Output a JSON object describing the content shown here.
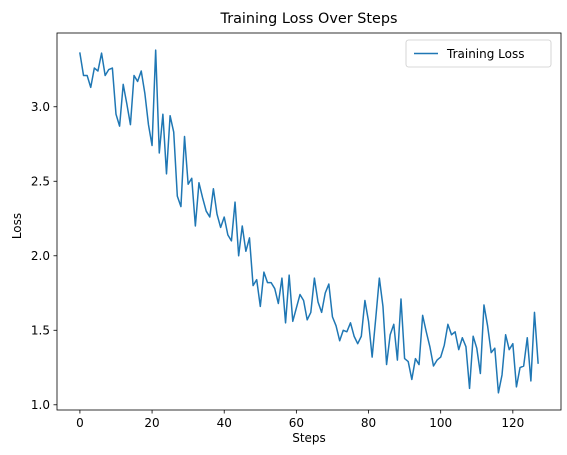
{
  "chart_data": {
    "type": "line",
    "title": "Training Loss Over Steps",
    "xlabel": "Steps",
    "ylabel": "Loss",
    "xlim": [
      -6.35,
      133.35
    ],
    "ylim": [
      0.965,
      3.495
    ],
    "xticks": [
      0,
      20,
      40,
      60,
      80,
      100,
      120
    ],
    "xtick_labels": [
      "0",
      "20",
      "40",
      "60",
      "80",
      "100",
      "120"
    ],
    "yticks": [
      1.0,
      1.5,
      2.0,
      2.5,
      3.0
    ],
    "ytick_labels": [
      "1.0",
      "1.5",
      "2.0",
      "2.5",
      "3.0"
    ],
    "grid": false,
    "legend_position": "top-right",
    "series": [
      {
        "name": "Training Loss",
        "color": "#1f77b4",
        "x": [
          0,
          1,
          2,
          3,
          4,
          5,
          6,
          7,
          8,
          9,
          10,
          11,
          12,
          13,
          14,
          15,
          16,
          17,
          18,
          19,
          20,
          21,
          22,
          23,
          24,
          25,
          26,
          27,
          28,
          29,
          30,
          31,
          32,
          33,
          34,
          35,
          36,
          37,
          38,
          39,
          40,
          41,
          42,
          43,
          44,
          45,
          46,
          47,
          48,
          49,
          50,
          51,
          52,
          53,
          54,
          55,
          56,
          57,
          58,
          59,
          60,
          61,
          62,
          63,
          64,
          65,
          66,
          67,
          68,
          69,
          70,
          71,
          72,
          73,
          74,
          75,
          76,
          77,
          78,
          79,
          80,
          81,
          82,
          83,
          84,
          85,
          86,
          87,
          88,
          89,
          90,
          91,
          92,
          93,
          94,
          95,
          96,
          97,
          98,
          99,
          100,
          101,
          102,
          103,
          104,
          105,
          106,
          107,
          108,
          109,
          110,
          111,
          112,
          113,
          114,
          115,
          116,
          117,
          118,
          119,
          120,
          121,
          122,
          123,
          124,
          125,
          126,
          127
        ],
        "values": [
          3.36,
          3.21,
          3.21,
          3.13,
          3.26,
          3.24,
          3.36,
          3.21,
          3.25,
          3.26,
          2.95,
          2.87,
          3.15,
          3.02,
          2.88,
          3.21,
          3.17,
          3.24,
          3.09,
          2.88,
          2.74,
          3.38,
          2.69,
          2.95,
          2.55,
          2.94,
          2.83,
          2.4,
          2.33,
          2.8,
          2.48,
          2.52,
          2.2,
          2.49,
          2.39,
          2.3,
          2.26,
          2.45,
          2.28,
          2.19,
          2.26,
          2.14,
          2.1,
          2.36,
          2.0,
          2.2,
          2.03,
          2.12,
          1.8,
          1.84,
          1.66,
          1.89,
          1.82,
          1.82,
          1.78,
          1.68,
          1.85,
          1.55,
          1.87,
          1.56,
          1.65,
          1.74,
          1.7,
          1.57,
          1.62,
          1.85,
          1.69,
          1.62,
          1.75,
          1.81,
          1.59,
          1.53,
          1.43,
          1.5,
          1.49,
          1.55,
          1.46,
          1.41,
          1.46,
          1.7,
          1.56,
          1.32,
          1.58,
          1.85,
          1.66,
          1.27,
          1.47,
          1.54,
          1.3,
          1.71,
          1.31,
          1.29,
          1.17,
          1.31,
          1.27,
          1.6,
          1.49,
          1.39,
          1.26,
          1.3,
          1.32,
          1.4,
          1.54,
          1.47,
          1.49,
          1.37,
          1.45,
          1.39,
          1.11,
          1.46,
          1.38,
          1.21,
          1.67,
          1.53,
          1.35,
          1.38,
          1.08,
          1.2,
          1.47,
          1.37,
          1.41,
          1.12,
          1.25,
          1.26,
          1.45,
          1.16,
          1.62,
          1.28
        ]
      }
    ]
  }
}
